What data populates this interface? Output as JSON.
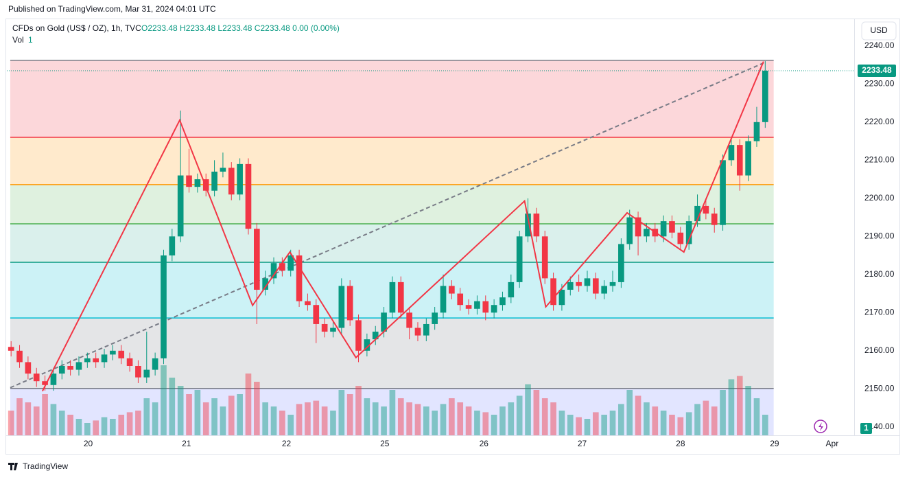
{
  "header": {
    "published": "Published on TradingView.com, Mar 31, 2024 04:01 UTC",
    "symbol": "CFDs on Gold (US$ / OZ), 1h, TVC",
    "ohlc": "O2233.48  H2233.48  L2233.48  C2233.48  0.00 (0.00%)",
    "vol_label": "Vol",
    "vol_value": "1",
    "currency": "USD"
  },
  "footer": {
    "brand": "TradingView"
  },
  "chart_data": {
    "type": "candlestick",
    "xlim": [
      -0.5,
      99.5
    ],
    "xticks": [
      {
        "value": 9.1,
        "label": "20"
      },
      {
        "value": 20.7,
        "label": "21"
      },
      {
        "value": 32.5,
        "label": "22"
      },
      {
        "value": 44.1,
        "label": "25"
      },
      {
        "value": 55.8,
        "label": "26"
      },
      {
        "value": 67.4,
        "label": "27"
      },
      {
        "value": 79.0,
        "label": "28"
      },
      {
        "value": 90.1,
        "label": "29"
      },
      {
        "value": 96.9,
        "label": "Apr"
      }
    ],
    "ylim": [
      2137.8,
      2247
    ],
    "yticks": [
      {
        "value": 2140,
        "label": "2140.00"
      },
      {
        "value": 2150,
        "label": "2150.00"
      },
      {
        "value": 2160,
        "label": "2160.00"
      },
      {
        "value": 2170,
        "label": "2170.00"
      },
      {
        "value": 2180,
        "label": "2180.00"
      },
      {
        "value": 2190,
        "label": "2190.00"
      },
      {
        "value": 2200,
        "label": "2200.00"
      },
      {
        "value": 2210,
        "label": "2210.00"
      },
      {
        "value": 2220,
        "label": "2220.00"
      },
      {
        "value": 2230,
        "label": "2230.00"
      },
      {
        "value": 2240,
        "label": "2240.00"
      }
    ],
    "up_color": "#089981",
    "down_color": "#f23645",
    "open": [
      2161,
      2160,
      2157,
      2154,
      2152,
      2151,
      2154,
      2156,
      2155,
      2157,
      2158,
      2157,
      2159,
      2160,
      2158,
      2156,
      2153,
      2155,
      2158,
      2185,
      2190,
      2206,
      2203,
      2205,
      2202,
      2207,
      2208,
      2201,
      2209,
      2192,
      2176,
      2179,
      2183,
      2181,
      2185,
      2173,
      2172,
      2167,
      2165,
      2166,
      2177,
      2168,
      2160,
      2163,
      2165,
      2170,
      2178,
      2170,
      2166,
      2164,
      2167,
      2170,
      2177,
      2175,
      2172,
      2171,
      2173,
      2170,
      2172,
      2174,
      2178,
      2190,
      2196,
      2190,
      2179,
      2172,
      2176,
      2178,
      2177,
      2179,
      2175,
      2177,
      2178,
      2188,
      2195,
      2190,
      2192,
      2190,
      2194,
      2191,
      2188,
      2194,
      2198,
      2196,
      2193,
      2210,
      2214,
      2206,
      2215,
      2220
    ],
    "high": [
      2162.5,
      2161.5,
      2158.5,
      2155.5,
      2153.5,
      2155.5,
      2157.5,
      2157.5,
      2158.5,
      2159.5,
      2159.5,
      2160.5,
      2161.5,
      2161.5,
      2159.5,
      2157.5,
      2165,
      2159.5,
      2186.5,
      2192,
      2223,
      2213,
      2206.5,
      2206.5,
      2210,
      2212,
      2209.5,
      2210.5,
      2210.5,
      2193.5,
      2181,
      2184.5,
      2184.5,
      2186.5,
      2186.5,
      2175,
      2173.5,
      2168.5,
      2167.5,
      2179,
      2178.5,
      2169.5,
      2164.5,
      2166.5,
      2171.5,
      2179.5,
      2179.5,
      2171.5,
      2167.5,
      2168.5,
      2171.5,
      2180,
      2178.5,
      2176.5,
      2173.5,
      2174.5,
      2174.5,
      2173.5,
      2175.5,
      2180,
      2191.5,
      2200,
      2197.5,
      2191.5,
      2180.5,
      2177.5,
      2179.5,
      2180,
      2181,
      2180.5,
      2178.5,
      2181,
      2189.5,
      2197,
      2196.5,
      2193.5,
      2193.5,
      2195.5,
      2195.5,
      2192.5,
      2195.5,
      2201,
      2199.5,
      2197.5,
      2211.5,
      2216,
      2215.5,
      2216.5,
      2224,
      2236
    ],
    "low": [
      2158.5,
      2155.5,
      2152.5,
      2150.5,
      2149.5,
      2149.5,
      2152.5,
      2153.5,
      2153.5,
      2155.5,
      2155.5,
      2155.5,
      2157.5,
      2156.5,
      2154.5,
      2151.5,
      2151.5,
      2153.5,
      2156.5,
      2183.5,
      2188.5,
      2201.5,
      2201.5,
      2200.5,
      2200.5,
      2205.5,
      2199.5,
      2199.5,
      2190.5,
      2167,
      2174.5,
      2177.5,
      2179.5,
      2179.5,
      2171.5,
      2170.5,
      2162,
      2163.5,
      2163.5,
      2164.5,
      2166.5,
      2157,
      2158.5,
      2161.5,
      2163.5,
      2168.5,
      2168.5,
      2163,
      2162.5,
      2162.5,
      2165.5,
      2168.5,
      2173.5,
      2170.5,
      2169.5,
      2169.5,
      2168,
      2168.5,
      2170.5,
      2172.5,
      2176.5,
      2188.5,
      2188.5,
      2177.5,
      2170.5,
      2170.5,
      2174.5,
      2175.5,
      2175.5,
      2173.5,
      2173.5,
      2175.5,
      2176.5,
      2186.5,
      2185,
      2188.5,
      2188.5,
      2188.5,
      2189.5,
      2186.5,
      2186.5,
      2192.5,
      2194.5,
      2191,
      2191.5,
      2208.5,
      2202,
      2204.5,
      2213.5,
      2218.5
    ],
    "close": [
      2160,
      2157,
      2154,
      2152,
      2151,
      2154,
      2156,
      2155,
      2157,
      2158,
      2157,
      2159,
      2160,
      2158,
      2156,
      2153,
      2155,
      2158,
      2185,
      2190,
      2206,
      2203,
      2205,
      2202,
      2207,
      2208,
      2201,
      2209,
      2192,
      2176,
      2179,
      2183,
      2181,
      2185,
      2173,
      2172,
      2167,
      2165,
      2166,
      2177,
      2168,
      2160,
      2163,
      2165,
      2170,
      2178,
      2170,
      2166,
      2164,
      2167,
      2170,
      2177,
      2175,
      2172,
      2171,
      2173,
      2170,
      2172,
      2174,
      2178,
      2190,
      2196,
      2190,
      2179,
      2172,
      2176,
      2178,
      2177,
      2179,
      2175,
      2177,
      2178,
      2188,
      2195,
      2190,
      2192,
      2190,
      2194,
      2191,
      2188,
      2194,
      2198,
      2196,
      2193,
      2210,
      2214,
      2206,
      2215,
      2220,
      2233.48
    ],
    "volume": [
      30,
      45,
      40,
      35,
      50,
      38,
      30,
      25,
      20,
      15,
      18,
      22,
      20,
      25,
      28,
      30,
      45,
      40,
      85,
      70,
      60,
      50,
      55,
      40,
      45,
      35,
      48,
      50,
      75,
      65,
      40,
      35,
      30,
      25,
      38,
      40,
      42,
      35,
      30,
      55,
      50,
      60,
      45,
      40,
      35,
      55,
      45,
      40,
      38,
      35,
      30,
      38,
      45,
      40,
      35,
      30,
      28,
      25,
      35,
      40,
      48,
      62,
      55,
      45,
      40,
      30,
      25,
      22,
      20,
      28,
      25,
      30,
      38,
      55,
      48,
      40,
      35,
      30,
      25,
      22,
      28,
      38,
      42,
      35,
      55,
      68,
      72,
      60,
      45,
      25
    ],
    "price_label": "2233.48",
    "volume_badge": "1",
    "fib_levels": [
      2236.2,
      2216.0,
      2203.6,
      2193.3,
      2183.2,
      2168.6,
      2150.1
    ],
    "fib_colors": [
      "#787b86",
      "#f23645",
      "#ff9800",
      "#4caf50",
      "#089981",
      "#00bcd4",
      "#787b86"
    ],
    "fib_fills": [
      "rgba(242,54,69,0.2)",
      "rgba(255,152,0,0.2)",
      "rgba(76,175,80,0.18)",
      "rgba(8,153,129,0.15)",
      "rgba(0,188,212,0.2)",
      "rgba(120,123,134,0.2)",
      "rgba(63,81,255,0.15)"
    ],
    "fib_x": [
      -0.1,
      90
    ],
    "zigzag": {
      "color": "#f23645",
      "x": [
        3.7,
        19.9,
        28.5,
        32.9,
        40.7,
        60.6,
        63.1,
        72.7,
        79.4,
        88.8
      ],
      "y": [
        2149.4,
        2220.5,
        2171.9,
        2185.9,
        2158.2,
        2199.3,
        2171.5,
        2196.2,
        2185.9,
        2235.9
      ]
    },
    "trend": {
      "color": "#787b86",
      "x": [
        -0.1,
        88.8
      ],
      "y": [
        2150.3,
        2235.5
      ]
    }
  }
}
